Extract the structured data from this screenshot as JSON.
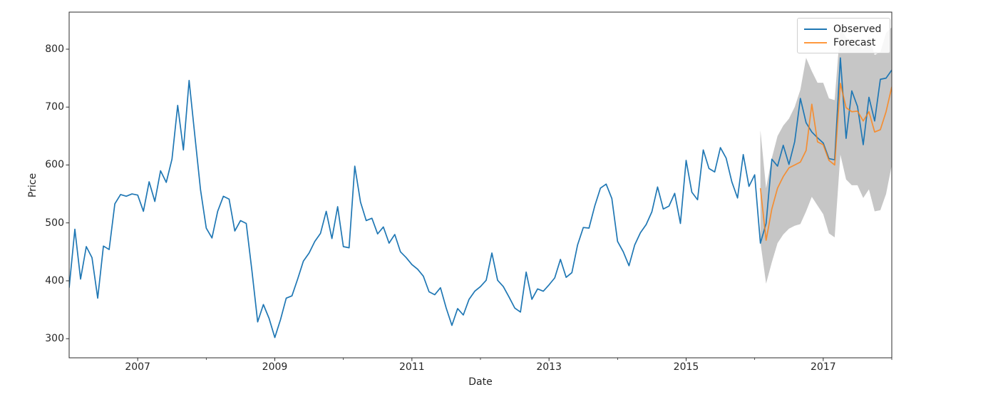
{
  "figure": {
    "background": "#ffffff"
  },
  "axes": {
    "xlabel": "Date",
    "ylabel": "Price"
  },
  "legend": {
    "items": [
      {
        "label": "Observed",
        "color": "#1f77b4"
      },
      {
        "label": "Forecast",
        "color": "#ff7f0e"
      }
    ]
  },
  "colors": {
    "spine": "#2b2b2b",
    "tick": "#2b2b2b",
    "text": "#262626",
    "observed": "#1f77b4",
    "forecast": "#ff7f0e",
    "band": "#808080"
  },
  "chart_data": {
    "type": "line",
    "title": "",
    "xlabel": "Date",
    "ylabel": "Price",
    "x_unit": "month",
    "xlim": [
      "2006-01",
      "2018-01"
    ],
    "ylim": [
      267,
      864
    ],
    "grid": false,
    "legend_position": "upper right",
    "x_tick_labels": [
      "2007",
      "2009",
      "2011",
      "2013",
      "2015",
      "2017"
    ],
    "x_minor_ticks": [
      "2008",
      "2010",
      "2012",
      "2014",
      "2016",
      "2018"
    ],
    "y_tick_labels": [
      "300",
      "400",
      "500",
      "600",
      "700",
      "800"
    ],
    "series": [
      {
        "name": "Observed",
        "color": "#1f77b4",
        "opacity": 1,
        "start": "2006-01",
        "freq": "monthly",
        "values": [
          388,
          489,
          403,
          459,
          440,
          370,
          460,
          454,
          533,
          549,
          546,
          550,
          548,
          520,
          571,
          537,
          590,
          570,
          610,
          703,
          626,
          746,
          651,
          557,
          491,
          474,
          520,
          546,
          541,
          486,
          504,
          499,
          417,
          329,
          359,
          335,
          302,
          333,
          370,
          374,
          403,
          434,
          448,
          468,
          482,
          520,
          473,
          528,
          459,
          457,
          598,
          536,
          504,
          508,
          481,
          493,
          465,
          480,
          450,
          440,
          428,
          420,
          408,
          381,
          376,
          388,
          353,
          323,
          352,
          341,
          368,
          382,
          390,
          401,
          448,
          401,
          390,
          372,
          353,
          346,
          415,
          368,
          386,
          382,
          393,
          405,
          437,
          406,
          414,
          462,
          492,
          491,
          529,
          560,
          567,
          542,
          468,
          450,
          426,
          462,
          483,
          497,
          519,
          562,
          524,
          529,
          551,
          499,
          608,
          553,
          540,
          626,
          594,
          588,
          630,
          612,
          571,
          543,
          618,
          563,
          583,
          465,
          499,
          610,
          598,
          634,
          601,
          640,
          715,
          673,
          657,
          647,
          638,
          611,
          609,
          785,
          646,
          728,
          701,
          635,
          717,
          676,
          748,
          750,
          764
        ]
      },
      {
        "name": "Forecast",
        "color": "#ff7f0e",
        "opacity": 0.8,
        "start": "2016-02",
        "freq": "monthly",
        "values": [
          560,
          470,
          524,
          560,
          580,
          595,
          600,
          605,
          625,
          705,
          640,
          635,
          608,
          600,
          741,
          699,
          692,
          693,
          676,
          692,
          657,
          661,
          692,
          735
        ]
      }
    ],
    "confidence_band": {
      "series": "Forecast",
      "start": "2016-02",
      "color": "#808080",
      "opacity": 0.45,
      "lower": [
        467,
        395,
        432,
        465,
        480,
        490,
        495,
        498,
        520,
        545,
        530,
        515,
        482,
        475,
        618,
        575,
        565,
        565,
        543,
        558,
        520,
        522,
        550,
        600
      ],
      "upper": [
        660,
        560,
        612,
        650,
        668,
        680,
        700,
        730,
        785,
        762,
        742,
        742,
        715,
        712,
        838,
        820,
        815,
        818,
        800,
        822,
        790,
        795,
        828,
        838
      ]
    }
  }
}
